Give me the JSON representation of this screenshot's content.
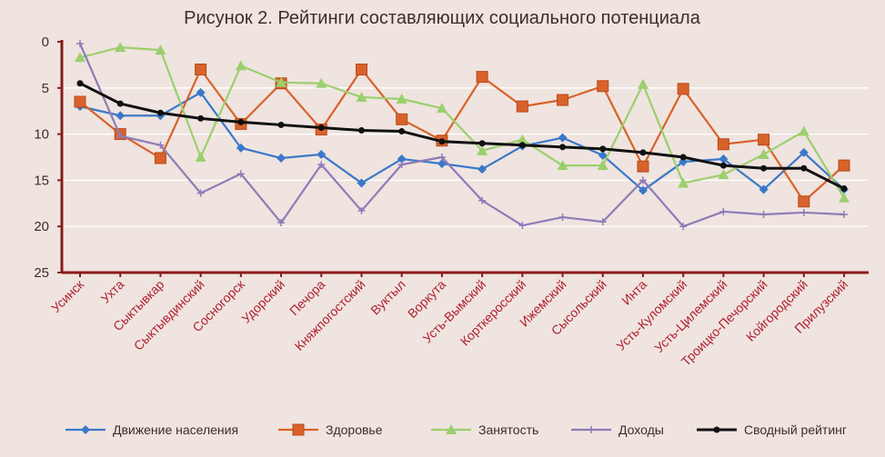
{
  "chart_data": {
    "type": "line",
    "title": "Рисунок 2. Рейтинги составляющих социального потенциала",
    "xlabel": "",
    "ylabel": "",
    "y_inverted": true,
    "ylim": [
      0,
      25
    ],
    "yticks": [
      0,
      5,
      10,
      15,
      20,
      25
    ],
    "grid": true,
    "legend_position": "bottom",
    "categories": [
      "Усинск",
      "Ухта",
      "Сыктывкар",
      "Сыктывдинский",
      "Сосногорск",
      "Удорский",
      "Печора",
      "Княжпогостский",
      "Вуктыл",
      "Воркута",
      "Усть-Вымский",
      "Корткеросский",
      "Ижемский",
      "Сысольский",
      "Инта",
      "Усть-Куломский",
      "Усть-Цилемский",
      "Троицко-Печорский",
      "Койгородский",
      "Прилузский"
    ],
    "series": [
      {
        "name": "Движение населения",
        "color": "#3a78c9",
        "marker": "diamond",
        "values": [
          7,
          8,
          8,
          5.5,
          11.5,
          12.6,
          12.2,
          15.3,
          12.7,
          13.2,
          13.8,
          11.3,
          10.4,
          12.3,
          16.1,
          13,
          12.7,
          16,
          12,
          16
        ]
      },
      {
        "name": "Здоровье",
        "color": "#d9622b",
        "marker": "square",
        "values": [
          6.5,
          10,
          12.6,
          3,
          8.9,
          4.5,
          9.5,
          3,
          8.4,
          10.7,
          3.8,
          7,
          6.3,
          4.8,
          13.5,
          5.1,
          11.1,
          10.6,
          17.3,
          13.4
        ]
      },
      {
        "name": "Занятость",
        "color": "#9ccf6e",
        "marker": "triangle",
        "values": [
          1.7,
          0.6,
          0.9,
          12.5,
          2.6,
          4.4,
          4.5,
          6,
          6.2,
          7.2,
          11.8,
          10.6,
          13.4,
          13.4,
          4.6,
          15.3,
          14.4,
          12.2,
          9.7,
          16.9
        ]
      },
      {
        "name": "Доходы",
        "color": "#8e7bb8",
        "marker": "cross",
        "values": [
          0.2,
          10.2,
          11.2,
          16.4,
          14.3,
          19.6,
          13.3,
          18.3,
          13.3,
          12.5,
          17.2,
          19.9,
          19,
          19.5,
          15,
          20,
          18.4,
          18.7,
          18.5,
          18.7
        ]
      },
      {
        "name": "Сводный рейтинг",
        "color": "#111111",
        "marker": "circle",
        "values": [
          4.5,
          6.7,
          7.7,
          8.3,
          8.7,
          9,
          9.3,
          9.6,
          9.7,
          10.8,
          11,
          11.2,
          11.4,
          11.6,
          12,
          12.5,
          13.4,
          13.7,
          13.7,
          15.9
        ]
      }
    ]
  }
}
